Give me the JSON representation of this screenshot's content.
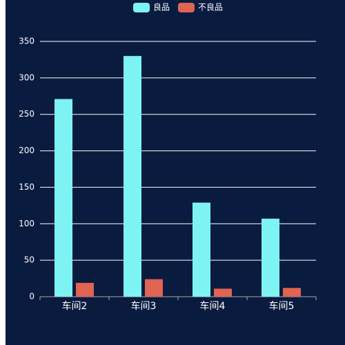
{
  "chart_data": {
    "type": "bar",
    "categories": [
      "车间2",
      "车间3",
      "车间4",
      "车间5"
    ],
    "series": [
      {
        "name": "良品",
        "color": "#7df3f3",
        "values": [
          271,
          330,
          129,
          107
        ]
      },
      {
        "name": "不良品",
        "color": "#e06452",
        "values": [
          19,
          24,
          11,
          12
        ]
      }
    ],
    "ylim": [
      0,
      350
    ],
    "yticks": [
      0,
      50,
      100,
      150,
      200,
      250,
      300,
      350
    ],
    "grid": true,
    "legend": "top"
  }
}
